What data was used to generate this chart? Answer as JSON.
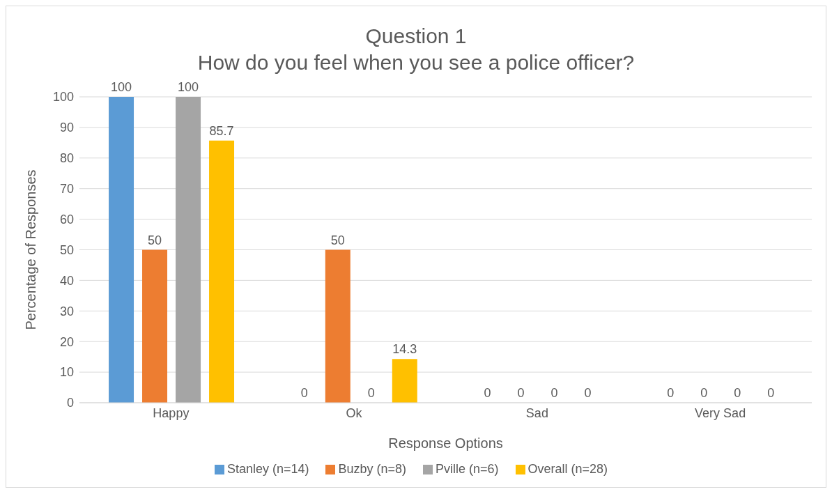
{
  "chart_data": {
    "type": "bar",
    "title": "Question 1",
    "subtitle": "How do you feel when you see a police officer?",
    "xlabel": "Response Options",
    "ylabel": "Percentage of Responses",
    "categories": [
      "Happy",
      "Ok",
      "Sad",
      "Very Sad"
    ],
    "series": [
      {
        "name": "Stanley (n=14)",
        "color": "#5b9bd5",
        "values": [
          100,
          0,
          0,
          0
        ]
      },
      {
        "name": "Buzby (n=8)",
        "color": "#ed7d31",
        "values": [
          50,
          50,
          0,
          0
        ]
      },
      {
        "name": "Pville (n=6)",
        "color": "#a5a5a5",
        "values": [
          100,
          0,
          0,
          0
        ]
      },
      {
        "name": "Overall (n=28)",
        "color": "#ffc000",
        "values": [
          85.7,
          14.3,
          0,
          0
        ]
      }
    ],
    "ylim": [
      0,
      100
    ],
    "yticks": [
      0,
      10,
      20,
      30,
      40,
      50,
      60,
      70,
      80,
      90,
      100
    ],
    "grid": "y",
    "legend": "bottom",
    "data_labels": true
  }
}
